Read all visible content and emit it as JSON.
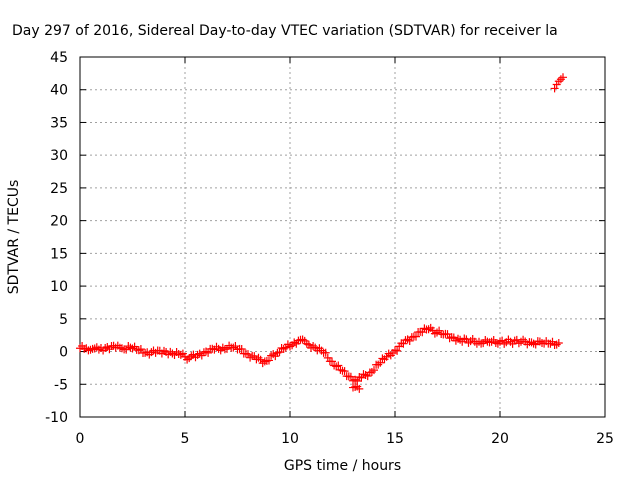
{
  "chart_data": {
    "type": "scatter",
    "title": "Day 297 of 2016, Sidereal Day-to-day VTEC variation (SDTVAR) for receiver la",
    "xlabel": "GPS time / hours",
    "ylabel": "SDTVAR / TECUs",
    "xlim": [
      0,
      25
    ],
    "ylim": [
      -10,
      45
    ],
    "xticks": [
      0,
      5,
      10,
      15,
      20,
      25
    ],
    "yticks": [
      -10,
      -5,
      0,
      5,
      10,
      15,
      20,
      25,
      30,
      35,
      40,
      45
    ],
    "grid": true,
    "marker": "plus",
    "color": "#ff0000",
    "series": [
      {
        "x": [
          0.0,
          0.3,
          0.6,
          0.9,
          1.3,
          1.7,
          2.0,
          2.4,
          2.8,
          3.2,
          3.6,
          4.0,
          4.4,
          4.8,
          5.0,
          5.2,
          5.6,
          6.0,
          6.4,
          6.8,
          7.2,
          7.6,
          8.0,
          8.4,
          8.8,
          9.4,
          9.8,
          10.2,
          10.5,
          10.8,
          11.2,
          11.6,
          12.0,
          12.4,
          12.8,
          13.1,
          13.4,
          13.8,
          14.2,
          14.6,
          15.0,
          15.4,
          15.8,
          16.2,
          16.6,
          16.8,
          17.3,
          17.7,
          18.1,
          18.6,
          19.0,
          19.5,
          20.0,
          20.5,
          21.0,
          21.5,
          22.0,
          22.4,
          22.8,
          22.6,
          22.7,
          22.8,
          22.9,
          23.0,
          13.0,
          13.3
        ],
        "y": [
          0.5,
          0.5,
          0.4,
          0.3,
          0.7,
          0.6,
          0.5,
          0.6,
          0.2,
          -0.1,
          -0.2,
          0.1,
          -0.3,
          -0.5,
          -0.8,
          -1.0,
          -0.5,
          0.0,
          0.3,
          0.6,
          0.6,
          0.4,
          -0.4,
          -1.2,
          -1.5,
          -0.2,
          0.6,
          1.4,
          1.8,
          1.2,
          0.6,
          -0.2,
          -1.5,
          -2.8,
          -3.8,
          -4.3,
          -4.0,
          -3.2,
          -2.0,
          -0.8,
          0.2,
          1.2,
          2.2,
          3.0,
          3.4,
          3.2,
          2.6,
          2.2,
          1.8,
          1.6,
          1.5,
          1.4,
          1.5,
          1.5,
          1.5,
          1.4,
          1.3,
          1.2,
          1.3,
          40.2,
          40.8,
          41.3,
          41.6,
          41.9,
          -5.5,
          -5.7
        ]
      }
    ]
  }
}
